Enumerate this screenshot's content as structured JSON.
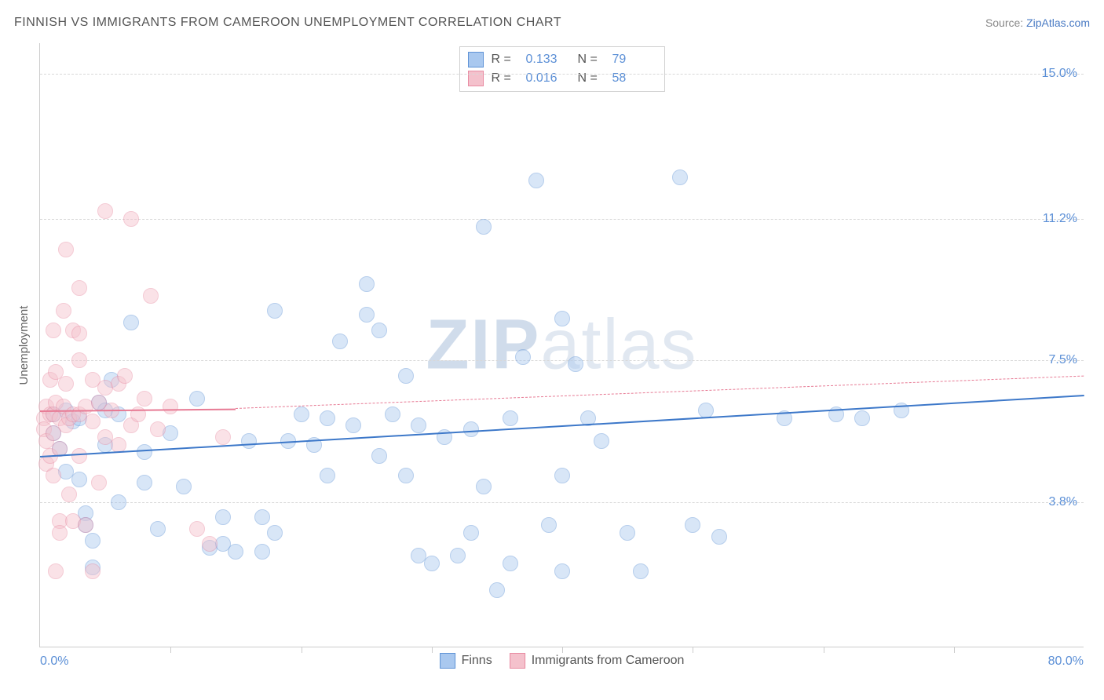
{
  "title": "FINNISH VS IMMIGRANTS FROM CAMEROON UNEMPLOYMENT CORRELATION CHART",
  "source_label": "Source:",
  "source_name": "ZipAtlas.com",
  "watermark_bold": "ZIP",
  "watermark_rest": "atlas",
  "y_axis_title": "Unemployment",
  "chart": {
    "type": "scatter",
    "background_color": "#ffffff",
    "grid_color": "#d8d8d8",
    "border_color": "#cccccc",
    "xlim": [
      0,
      80
    ],
    "ylim": [
      0,
      15.8
    ],
    "x_start_label": "0.0%",
    "x_end_label": "80.0%",
    "x_ticks": [
      10,
      20,
      30,
      40,
      50,
      60,
      70
    ],
    "y_ticks": [
      {
        "v": 3.8,
        "label": "3.8%"
      },
      {
        "v": 7.5,
        "label": "7.5%"
      },
      {
        "v": 11.2,
        "label": "11.2%"
      },
      {
        "v": 15.0,
        "label": "15.0%"
      }
    ],
    "tick_label_color": "#5b8fd6",
    "label_fontsize": 16,
    "point_radius": 10,
    "point_opacity": 0.45,
    "series": [
      {
        "id": "finns",
        "name": "Finns",
        "color_fill": "#a9c8ef",
        "color_stroke": "#5f93d6",
        "R": "0.133",
        "N": "79",
        "trend": {
          "x1": 0,
          "y1": 5.0,
          "x2": 80,
          "y2": 6.6,
          "style": "solid",
          "color": "#3d78c9",
          "dashed_ext": false
        },
        "points": [
          [
            1,
            6.1
          ],
          [
            1,
            5.6
          ],
          [
            1.5,
            5.2
          ],
          [
            2,
            6.2
          ],
          [
            2,
            4.6
          ],
          [
            2.5,
            5.9
          ],
          [
            3,
            6.0
          ],
          [
            3,
            4.4
          ],
          [
            3.5,
            3.5
          ],
          [
            3.5,
            3.2
          ],
          [
            4,
            2.8
          ],
          [
            4,
            2.1
          ],
          [
            4.5,
            6.4
          ],
          [
            5,
            6.2
          ],
          [
            5,
            5.3
          ],
          [
            5.5,
            7.0
          ],
          [
            6,
            6.1
          ],
          [
            6,
            3.8
          ],
          [
            7,
            8.5
          ],
          [
            8,
            5.1
          ],
          [
            8,
            4.3
          ],
          [
            9,
            3.1
          ],
          [
            10,
            5.6
          ],
          [
            11,
            4.2
          ],
          [
            12,
            6.5
          ],
          [
            13,
            2.6
          ],
          [
            14,
            3.4
          ],
          [
            14,
            2.7
          ],
          [
            15,
            2.5
          ],
          [
            16,
            5.4
          ],
          [
            17,
            3.4
          ],
          [
            17,
            2.5
          ],
          [
            18,
            8.8
          ],
          [
            18,
            3.0
          ],
          [
            19,
            5.4
          ],
          [
            20,
            6.1
          ],
          [
            21,
            5.3
          ],
          [
            22,
            6.0
          ],
          [
            22,
            4.5
          ],
          [
            23,
            8.0
          ],
          [
            24,
            5.8
          ],
          [
            25,
            8.7
          ],
          [
            25,
            9.5
          ],
          [
            26,
            8.3
          ],
          [
            26,
            5.0
          ],
          [
            27,
            6.1
          ],
          [
            28,
            7.1
          ],
          [
            28,
            4.5
          ],
          [
            29,
            5.8
          ],
          [
            29,
            2.4
          ],
          [
            30,
            2.2
          ],
          [
            31,
            5.5
          ],
          [
            32,
            2.4
          ],
          [
            33,
            5.7
          ],
          [
            33,
            3.0
          ],
          [
            34,
            11.0
          ],
          [
            34,
            4.2
          ],
          [
            35,
            1.5
          ],
          [
            36,
            6.0
          ],
          [
            36,
            2.2
          ],
          [
            37,
            7.6
          ],
          [
            38,
            12.2
          ],
          [
            39,
            3.2
          ],
          [
            40,
            4.5
          ],
          [
            40,
            8.6
          ],
          [
            40,
            2.0
          ],
          [
            41,
            7.4
          ],
          [
            42,
            6.0
          ],
          [
            43,
            5.4
          ],
          [
            45,
            3.0
          ],
          [
            46,
            2.0
          ],
          [
            49,
            12.3
          ],
          [
            50,
            3.2
          ],
          [
            51,
            6.2
          ],
          [
            52,
            2.9
          ],
          [
            57,
            6.0
          ],
          [
            61,
            6.1
          ],
          [
            63,
            6.0
          ],
          [
            66,
            6.2
          ]
        ]
      },
      {
        "id": "cameroon",
        "name": "Immigrants from Cameroon",
        "color_fill": "#f4c1cc",
        "color_stroke": "#e88ba2",
        "R": "0.016",
        "N": "58",
        "trend": {
          "x1": 0,
          "y1": 6.2,
          "x2": 15,
          "y2": 6.25,
          "style": "solid",
          "color": "#e77a94",
          "dashed_ext": true,
          "x2_ext": 80,
          "y2_ext": 7.1
        },
        "points": [
          [
            0.3,
            6.0
          ],
          [
            0.3,
            5.7
          ],
          [
            0.5,
            6.3
          ],
          [
            0.5,
            5.4
          ],
          [
            0.5,
            4.8
          ],
          [
            0.8,
            6.1
          ],
          [
            0.8,
            7.0
          ],
          [
            0.8,
            5.0
          ],
          [
            1,
            6.1
          ],
          [
            1,
            5.6
          ],
          [
            1,
            4.5
          ],
          [
            1,
            8.3
          ],
          [
            1.2,
            6.4
          ],
          [
            1.2,
            7.2
          ],
          [
            1.2,
            2.0
          ],
          [
            1.5,
            6.0
          ],
          [
            1.5,
            5.2
          ],
          [
            1.5,
            3.3
          ],
          [
            1.5,
            3.0
          ],
          [
            1.8,
            6.3
          ],
          [
            1.8,
            8.8
          ],
          [
            2,
            5.8
          ],
          [
            2,
            6.9
          ],
          [
            2,
            10.4
          ],
          [
            2.2,
            6.0
          ],
          [
            2.2,
            4.0
          ],
          [
            2.5,
            6.1
          ],
          [
            2.5,
            8.3
          ],
          [
            2.5,
            3.3
          ],
          [
            3,
            6.1
          ],
          [
            3,
            5.0
          ],
          [
            3,
            7.5
          ],
          [
            3,
            9.4
          ],
          [
            3,
            8.2
          ],
          [
            3.5,
            6.3
          ],
          [
            3.5,
            3.2
          ],
          [
            4,
            5.9
          ],
          [
            4,
            7.0
          ],
          [
            4,
            2.0
          ],
          [
            4.5,
            6.4
          ],
          [
            4.5,
            4.3
          ],
          [
            5,
            6.8
          ],
          [
            5,
            5.5
          ],
          [
            5,
            11.4
          ],
          [
            5.5,
            6.2
          ],
          [
            6,
            6.9
          ],
          [
            6,
            5.3
          ],
          [
            6.5,
            7.1
          ],
          [
            7,
            5.8
          ],
          [
            7,
            11.2
          ],
          [
            7.5,
            6.1
          ],
          [
            8,
            6.5
          ],
          [
            8.5,
            9.2
          ],
          [
            9,
            5.7
          ],
          [
            10,
            6.3
          ],
          [
            12,
            3.1
          ],
          [
            13,
            2.7
          ],
          [
            14,
            5.5
          ]
        ]
      }
    ]
  },
  "legend_top": {
    "r_label": "R  =",
    "n_label": "N  ="
  }
}
